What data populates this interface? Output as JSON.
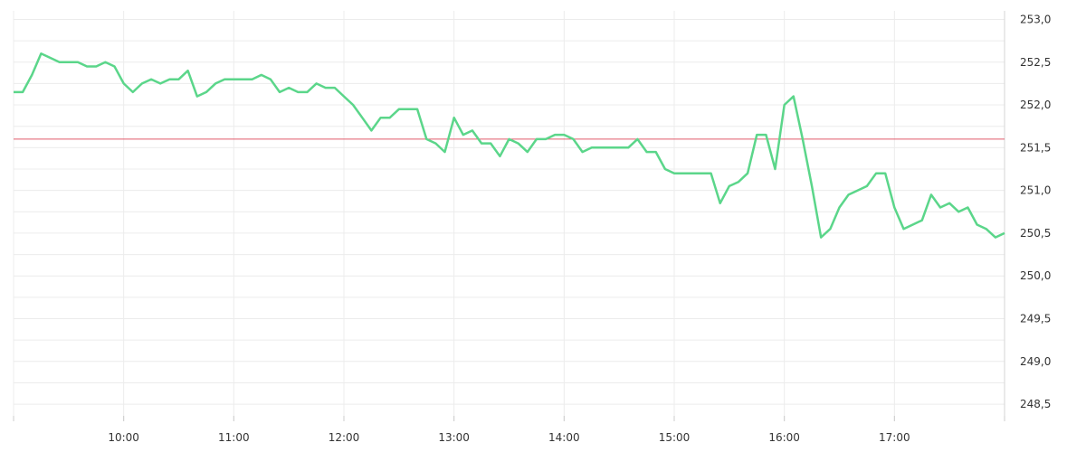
{
  "chart_data": {
    "type": "line",
    "title": "",
    "xlabel": "",
    "ylabel": "",
    "grid": true,
    "colors": {
      "line": "#5bd68a",
      "reference": "#e05a6b",
      "grid": "#ececec"
    },
    "x_ticks": [
      "10:00",
      "11:00",
      "12:00",
      "13:00",
      "14:00",
      "15:00",
      "16:00",
      "17:00"
    ],
    "y_ticks": [
      "248,5",
      "249,0",
      "249,5",
      "250,0",
      "250,5",
      "251,0",
      "251,5",
      "252,0",
      "252,5",
      "253,0"
    ],
    "xlim": [
      "09:00",
      "18:00"
    ],
    "ylim": [
      248.3,
      253.1
    ],
    "reference_line": 251.6,
    "series": [
      {
        "x": [
          "09:00",
          "09:05",
          "09:10",
          "09:15",
          "09:20",
          "09:25",
          "09:30",
          "09:35",
          "09:40",
          "09:45",
          "09:50",
          "09:55",
          "10:00",
          "10:05",
          "10:10",
          "10:15",
          "10:20",
          "10:25",
          "10:30",
          "10:35",
          "10:40",
          "10:45",
          "10:50",
          "10:55",
          "11:00",
          "11:05",
          "11:10",
          "11:15",
          "11:20",
          "11:25",
          "11:30",
          "11:35",
          "11:40",
          "11:45",
          "11:50",
          "11:55",
          "12:00",
          "12:05",
          "12:10",
          "12:15",
          "12:20",
          "12:25",
          "12:30",
          "12:35",
          "12:40",
          "12:45",
          "12:50",
          "12:55",
          "13:00",
          "13:05",
          "13:10",
          "13:15",
          "13:20",
          "13:25",
          "13:30",
          "13:35",
          "13:40",
          "13:45",
          "13:50",
          "13:55",
          "14:00",
          "14:05",
          "14:10",
          "14:15",
          "14:20",
          "14:25",
          "14:30",
          "14:35",
          "14:40",
          "14:45",
          "14:50",
          "14:55",
          "15:00",
          "15:05",
          "15:10",
          "15:15",
          "15:20",
          "15:25",
          "15:30",
          "15:35",
          "15:40",
          "15:45",
          "15:50",
          "15:55",
          "16:00",
          "16:05",
          "16:10",
          "16:15",
          "16:20",
          "16:25",
          "16:30",
          "16:35",
          "16:40",
          "16:45",
          "16:50",
          "16:55",
          "17:00",
          "17:05",
          "17:10",
          "17:15",
          "17:20",
          "17:25",
          "17:30",
          "17:35",
          "17:40",
          "17:45",
          "17:50",
          "17:55",
          "18:00"
        ],
        "values": [
          252.15,
          252.15,
          252.35,
          252.6,
          252.55,
          252.5,
          252.5,
          252.5,
          252.45,
          252.45,
          252.5,
          252.45,
          252.25,
          252.15,
          252.25,
          252.3,
          252.25,
          252.3,
          252.3,
          252.4,
          252.1,
          252.15,
          252.25,
          252.3,
          252.3,
          252.3,
          252.3,
          252.35,
          252.3,
          252.15,
          252.2,
          252.15,
          252.15,
          252.25,
          252.2,
          252.2,
          252.1,
          252.0,
          251.85,
          251.7,
          251.85,
          251.85,
          251.95,
          251.95,
          251.95,
          251.6,
          251.55,
          251.45,
          251.85,
          251.65,
          251.7,
          251.55,
          251.55,
          251.4,
          251.6,
          251.55,
          251.45,
          251.6,
          251.6,
          251.65,
          251.65,
          251.6,
          251.45,
          251.5,
          251.5,
          251.5,
          251.5,
          251.5,
          251.6,
          251.45,
          251.45,
          251.25,
          251.2,
          251.2,
          251.2,
          251.2,
          251.2,
          250.85,
          251.05,
          251.1,
          251.2,
          251.65,
          251.65,
          251.25,
          252.0,
          252.1,
          251.6,
          251.05,
          250.45,
          250.55,
          250.8,
          250.95,
          251.0,
          251.05,
          251.2,
          251.2,
          250.8,
          250.55,
          250.6,
          250.65,
          250.95,
          250.8,
          250.85,
          250.75,
          250.8,
          250.6,
          250.55,
          250.45,
          250.5
        ]
      }
    ]
  }
}
